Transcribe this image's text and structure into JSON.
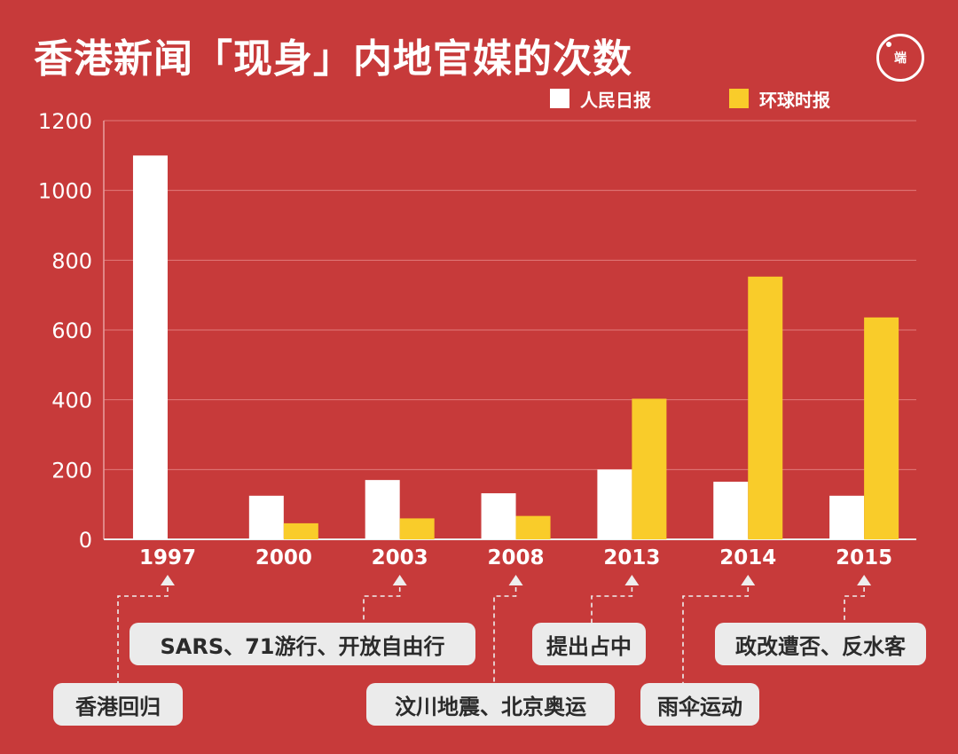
{
  "title": "香港新闻「现身」内地官媒的次数",
  "logo_text": "端",
  "legend": [
    {
      "label": "人民日报",
      "color": "#ffffff"
    },
    {
      "label": "环球时报",
      "color": "#f9cc2a"
    }
  ],
  "chart_data": {
    "type": "bar",
    "categories": [
      "1997",
      "2000",
      "2003",
      "2008",
      "2013",
      "2014",
      "2015"
    ],
    "series": [
      {
        "name": "人民日报",
        "color": "#ffffff",
        "values": [
          1100,
          125,
          170,
          132,
          200,
          165,
          125
        ]
      },
      {
        "name": "环球时报",
        "color": "#f9cc2a",
        "values": [
          0,
          46,
          60,
          67,
          403,
          753,
          636
        ]
      }
    ],
    "ylim": [
      0,
      1200
    ],
    "yticks": [
      "0",
      "200",
      "400",
      "600",
      "800",
      "1000",
      "1200"
    ],
    "grid": true,
    "legend_position": "top-right",
    "annotations": [
      {
        "category": "1997",
        "text": "香港回归"
      },
      {
        "category": "2003",
        "text": "SARS、71游行、开放自由行"
      },
      {
        "category": "2008",
        "text": "汶川地震、北京奥运"
      },
      {
        "category": "2013",
        "text": "提出占中"
      },
      {
        "category": "2014",
        "text": "雨伞运动"
      },
      {
        "category": "2015",
        "text": "政改遭否、反水客"
      }
    ]
  }
}
